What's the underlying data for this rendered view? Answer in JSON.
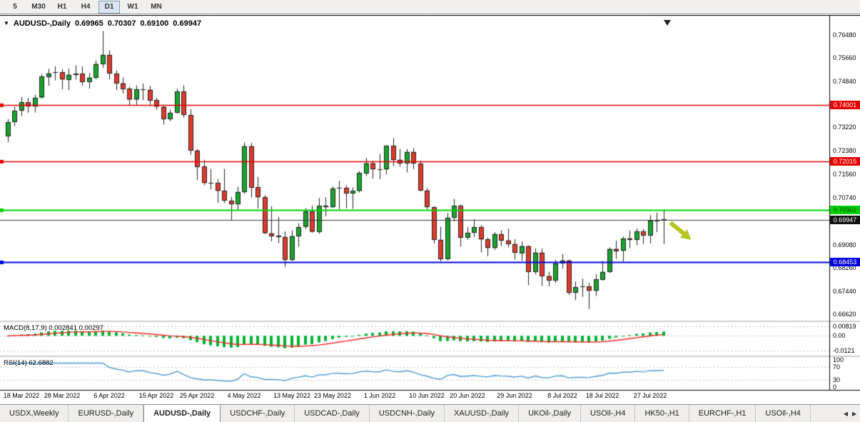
{
  "toolbar": {
    "periods": [
      {
        "label": "5",
        "active": false
      },
      {
        "label": "M30",
        "active": false
      },
      {
        "label": "H1",
        "active": false
      },
      {
        "label": "H4",
        "active": false
      },
      {
        "label": "D1",
        "active": true
      },
      {
        "label": "W1",
        "active": false
      },
      {
        "label": "MN",
        "active": false
      }
    ]
  },
  "chart_data": {
    "type": "candlestick",
    "symbol": "AUDUSD-,Daily",
    "ohlc_display": {
      "open": "0.69965",
      "high": "0.70307",
      "low": "0.69100",
      "close": "0.69947"
    },
    "y_range": [
      0.664,
      0.771
    ],
    "price_axis_ticks": [
      "0.76480",
      "0.75660",
      "0.74840",
      "0.73220",
      "0.72380",
      "0.71560",
      "0.70740",
      "0.69080",
      "0.68260",
      "0.67440",
      "0.66620"
    ],
    "hlines": [
      {
        "price": 0.74001,
        "label": "0.74001",
        "color": "#e60000",
        "line_width": 1.4,
        "text_color": "#ffffff"
      },
      {
        "price": 0.72015,
        "label": "0.72015",
        "color": "#e60000",
        "line_width": 1.4,
        "text_color": "#ffffff"
      },
      {
        "price": 0.70302,
        "label": "0.70302",
        "color": "#00d400",
        "line_width": 2,
        "text_color": "#003800"
      },
      {
        "price": 0.68453,
        "label": "0.68453",
        "color": "#0000dd",
        "line_width": 2,
        "text_color": "#ffffff"
      }
    ],
    "bid": {
      "price": 0.69947,
      "label": "0.69947",
      "box_color": "#111111",
      "line_color": "#3c3c3c",
      "text_color": "#ffffff"
    },
    "candles": [
      [
        0.729,
        0.735,
        0.727,
        0.734
      ],
      [
        0.734,
        0.7395,
        0.7325,
        0.738
      ],
      [
        0.738,
        0.7428,
        0.7362,
        0.741
      ],
      [
        0.741,
        0.7425,
        0.7373,
        0.7395
      ],
      [
        0.7395,
        0.7436,
        0.7374,
        0.7426
      ],
      [
        0.7426,
        0.7508,
        0.7423,
        0.75
      ],
      [
        0.75,
        0.7528,
        0.7468,
        0.7512
      ],
      [
        0.7512,
        0.7537,
        0.7487,
        0.7515
      ],
      [
        0.7515,
        0.7527,
        0.7456,
        0.749
      ],
      [
        0.749,
        0.7529,
        0.7453,
        0.7507
      ],
      [
        0.7507,
        0.754,
        0.749,
        0.7511
      ],
      [
        0.7511,
        0.7536,
        0.7468,
        0.7482
      ],
      [
        0.7482,
        0.7513,
        0.7458,
        0.7497
      ],
      [
        0.7497,
        0.7557,
        0.749,
        0.7545
      ],
      [
        0.7545,
        0.7661,
        0.7532,
        0.7577
      ],
      [
        0.7577,
        0.7593,
        0.749,
        0.7511
      ],
      [
        0.7511,
        0.7522,
        0.7453,
        0.7477
      ],
      [
        0.7477,
        0.7497,
        0.7441,
        0.7457
      ],
      [
        0.7457,
        0.7464,
        0.74,
        0.7419
      ],
      [
        0.7419,
        0.7469,
        0.7399,
        0.7455
      ],
      [
        0.7455,
        0.7476,
        0.7417,
        0.7454
      ],
      [
        0.7454,
        0.7468,
        0.7397,
        0.7417
      ],
      [
        0.7417,
        0.7425,
        0.7383,
        0.7394
      ],
      [
        0.7394,
        0.74,
        0.7331,
        0.7351
      ],
      [
        0.7351,
        0.7384,
        0.7343,
        0.7373
      ],
      [
        0.7373,
        0.7458,
        0.737,
        0.7448
      ],
      [
        0.7448,
        0.747,
        0.7356,
        0.7365
      ],
      [
        0.7365,
        0.7385,
        0.7225,
        0.724
      ],
      [
        0.724,
        0.7245,
        0.7135,
        0.7183
      ],
      [
        0.7183,
        0.7207,
        0.7118,
        0.7125
      ],
      [
        0.7125,
        0.7175,
        0.7102,
        0.7125
      ],
      [
        0.7125,
        0.7139,
        0.7055,
        0.7097
      ],
      [
        0.7097,
        0.7175,
        0.7055,
        0.7063
      ],
      [
        0.7063,
        0.7076,
        0.6995,
        0.705
      ],
      [
        0.705,
        0.7112,
        0.7029,
        0.7094
      ],
      [
        0.7094,
        0.7268,
        0.7087,
        0.7255
      ],
      [
        0.7255,
        0.7266,
        0.7075,
        0.711
      ],
      [
        0.711,
        0.7147,
        0.7035,
        0.7075
      ],
      [
        0.7075,
        0.7083,
        0.6945,
        0.6948
      ],
      [
        0.6948,
        0.7043,
        0.692,
        0.6939
      ],
      [
        0.6939,
        0.7006,
        0.6913,
        0.6935
      ],
      [
        0.6935,
        0.6954,
        0.6829,
        0.6855
      ],
      [
        0.6855,
        0.6958,
        0.685,
        0.6938
      ],
      [
        0.6938,
        0.6983,
        0.69,
        0.697
      ],
      [
        0.697,
        0.7037,
        0.6963,
        0.7024
      ],
      [
        0.7024,
        0.7046,
        0.695,
        0.6953
      ],
      [
        0.6953,
        0.7073,
        0.6946,
        0.7045
      ],
      [
        0.7045,
        0.7075,
        0.7008,
        0.704
      ],
      [
        0.704,
        0.7113,
        0.7037,
        0.7106
      ],
      [
        0.7106,
        0.7133,
        0.7033,
        0.7108
      ],
      [
        0.7108,
        0.7117,
        0.7036,
        0.7088
      ],
      [
        0.7088,
        0.711,
        0.7034,
        0.7097
      ],
      [
        0.7097,
        0.7167,
        0.7092,
        0.7161
      ],
      [
        0.7161,
        0.7214,
        0.715,
        0.7195
      ],
      [
        0.7195,
        0.7204,
        0.7141,
        0.7175
      ],
      [
        0.7175,
        0.7228,
        0.7139,
        0.7173
      ],
      [
        0.7173,
        0.7258,
        0.7155,
        0.7257
      ],
      [
        0.7257,
        0.7283,
        0.7185,
        0.7207
      ],
      [
        0.7207,
        0.7245,
        0.7183,
        0.7195
      ],
      [
        0.7195,
        0.7245,
        0.7163,
        0.7235
      ],
      [
        0.7235,
        0.7248,
        0.7174,
        0.7194
      ],
      [
        0.7194,
        0.7204,
        0.7096,
        0.7099
      ],
      [
        0.7099,
        0.7107,
        0.7033,
        0.704
      ],
      [
        0.704,
        0.7043,
        0.6912,
        0.6925
      ],
      [
        0.6925,
        0.6971,
        0.685,
        0.6858
      ],
      [
        0.6858,
        0.7019,
        0.6853,
        0.7003
      ],
      [
        0.7003,
        0.7069,
        0.6989,
        0.7045
      ],
      [
        0.7045,
        0.7049,
        0.6901,
        0.6932
      ],
      [
        0.6932,
        0.697,
        0.6925,
        0.695
      ],
      [
        0.695,
        0.6997,
        0.6934,
        0.697
      ],
      [
        0.697,
        0.6977,
        0.6881,
        0.6926
      ],
      [
        0.6926,
        0.6932,
        0.6867,
        0.6896
      ],
      [
        0.6896,
        0.6952,
        0.689,
        0.6945
      ],
      [
        0.6945,
        0.6958,
        0.6903,
        0.6923
      ],
      [
        0.6923,
        0.6964,
        0.6898,
        0.691
      ],
      [
        0.691,
        0.6927,
        0.6855,
        0.6879
      ],
      [
        0.6879,
        0.6919,
        0.685,
        0.6903
      ],
      [
        0.6903,
        0.6904,
        0.6765,
        0.6812
      ],
      [
        0.6812,
        0.6895,
        0.6803,
        0.688
      ],
      [
        0.688,
        0.6894,
        0.6762,
        0.6797
      ],
      [
        0.6797,
        0.6812,
        0.6761,
        0.6782
      ],
      [
        0.6782,
        0.6854,
        0.6772,
        0.6842
      ],
      [
        0.6842,
        0.6875,
        0.6823,
        0.6852
      ],
      [
        0.6852,
        0.6855,
        0.6731,
        0.6738
      ],
      [
        0.6738,
        0.6778,
        0.6712,
        0.6758
      ],
      [
        0.6758,
        0.6788,
        0.6724,
        0.676
      ],
      [
        0.676,
        0.6772,
        0.6681,
        0.6745
      ],
      [
        0.6745,
        0.6803,
        0.6727,
        0.6785
      ],
      [
        0.6785,
        0.685,
        0.6782,
        0.6812
      ],
      [
        0.6812,
        0.6898,
        0.6808,
        0.6893
      ],
      [
        0.6893,
        0.6922,
        0.6858,
        0.6886
      ],
      [
        0.6886,
        0.6936,
        0.6846,
        0.693
      ],
      [
        0.693,
        0.6958,
        0.6896,
        0.6925
      ],
      [
        0.6925,
        0.6965,
        0.6906,
        0.6955
      ],
      [
        0.6955,
        0.6963,
        0.691,
        0.694
      ],
      [
        0.694,
        0.7012,
        0.6912,
        0.6992
      ],
      [
        0.6992,
        0.7021,
        0.6952,
        0.699
      ],
      [
        0.69965,
        0.70307,
        0.691,
        0.69947
      ]
    ],
    "date_ticks": [
      {
        "label": "18 Mar 2022",
        "i": 2
      },
      {
        "label": "28 Mar 2022",
        "i": 8
      },
      {
        "label": "6 Apr 2022",
        "i": 15
      },
      {
        "label": "15 Apr 2022",
        "i": 22
      },
      {
        "label": "25 Apr 2022",
        "i": 28
      },
      {
        "label": "4 May 2022",
        "i": 35
      },
      {
        "label": "13 May 2022",
        "i": 42
      },
      {
        "label": "23 May 2022",
        "i": 48
      },
      {
        "label": "1 Jun 2022",
        "i": 55
      },
      {
        "label": "10 Jun 2022",
        "i": 62
      },
      {
        "label": "20 Jun 2022",
        "i": 68
      },
      {
        "label": "29 Jun 2022",
        "i": 75
      },
      {
        "label": "8 Jul 2022",
        "i": 82
      },
      {
        "label": "18 Jul 2022",
        "i": 88
      },
      {
        "label": "27 Jul 2022",
        "i": 95
      }
    ],
    "annotation": {
      "type": "down-right-arrow",
      "color": "#b5c61e"
    },
    "candle_up_color": "#17a52c",
    "candle_down_color": "#e13a2c"
  },
  "indicators": {
    "macd_label": "MACD(8,17,9) 0.002841 0.00297",
    "macd_params": [
      8,
      17,
      9
    ],
    "macd_axis": [
      {
        "label": "0.00819",
        "value": 0.00819
      },
      {
        "label": "0.00",
        "value": 0
      },
      {
        "label": "-0.0121",
        "value": -0.0121
      }
    ],
    "macd_histogram_color": "#00b432",
    "macd_signal_color": "#ff2020",
    "rsi_label": "RSI(14) 62.6882",
    "rsi_period": 14,
    "rsi_axis": [
      {
        "label": "100",
        "value": 100
      },
      {
        "label": "70",
        "value": 70
      },
      {
        "label": "30",
        "value": 30
      },
      {
        "label": "0",
        "value": 0
      }
    ],
    "rsi_levels": [
      70,
      30
    ],
    "rsi_color": "#4a9bd5"
  },
  "tabs": {
    "items": [
      {
        "label": "USDX,Weekly",
        "active": false
      },
      {
        "label": "EURUSD-,Daily",
        "active": false
      },
      {
        "label": "AUDUSD-,Daily",
        "active": true
      },
      {
        "label": "USDCHF-,Daily",
        "active": false
      },
      {
        "label": "USDCAD-,Daily",
        "active": false
      },
      {
        "label": "USDCNH-,Daily",
        "active": false
      },
      {
        "label": "XAUUSD-,Daily",
        "active": false
      },
      {
        "label": "UKOil-,Daily",
        "active": false
      },
      {
        "label": "USOil-,H4",
        "active": false
      },
      {
        "label": "HK50-,H1",
        "active": false
      },
      {
        "label": "EURCHF-,H1",
        "active": false
      },
      {
        "label": "USOil-,H4",
        "active": false
      }
    ],
    "scroll_left": "◀",
    "scroll_right": "▶"
  }
}
